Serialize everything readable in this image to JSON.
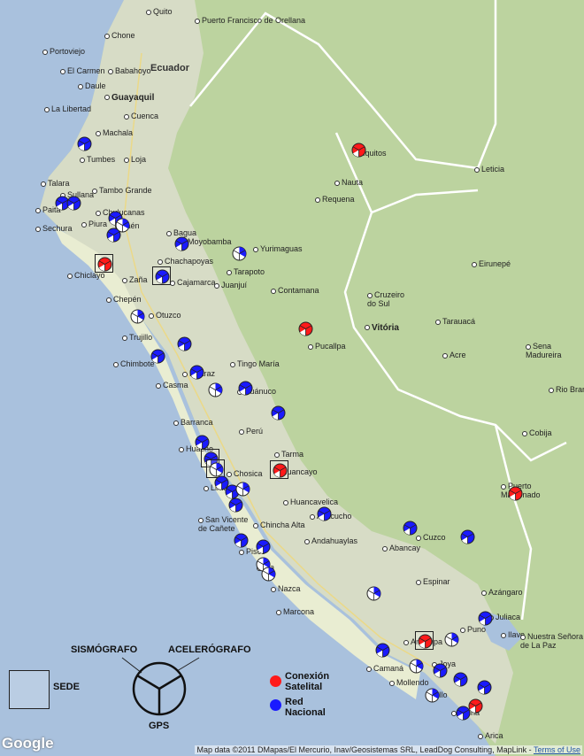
{
  "map": {
    "colors": {
      "ocean": "#a9c1dd",
      "forest": "#bcd39f",
      "coast": "#e6ebcf",
      "mountain": "#d8dcc7",
      "border": "#ffffff",
      "road": "#f0d878"
    },
    "places": [
      {
        "id": "quito",
        "label": "Quito",
        "bold": false
      },
      {
        "id": "san-francisco-orellana",
        "label": "Puerto Francisco de Orellana",
        "bold": false
      },
      {
        "id": "chone",
        "label": "Chone",
        "bold": false
      },
      {
        "id": "portoviejo",
        "label": "Portoviejo",
        "bold": false
      },
      {
        "id": "el-carmen",
        "label": "El Carmen",
        "bold": false
      },
      {
        "id": "babahoyo",
        "label": "Babahoyo",
        "bold": false
      },
      {
        "id": "daule",
        "label": "Daule",
        "bold": false
      },
      {
        "id": "guayaquil",
        "label": "Guayaquil",
        "bold": true
      },
      {
        "id": "la-libertad",
        "label": "La Libertad",
        "bold": false
      },
      {
        "id": "cuenca",
        "label": "Cuenca",
        "bold": false
      },
      {
        "id": "machala",
        "label": "Machala",
        "bold": false
      },
      {
        "id": "loja",
        "label": "Loja",
        "bold": false
      },
      {
        "id": "tumbes",
        "label": "Tumbes",
        "bold": false
      },
      {
        "id": "talara",
        "label": "Talara",
        "bold": false
      },
      {
        "id": "sullana",
        "label": "Sullana",
        "bold": false
      },
      {
        "id": "tambo-grande",
        "label": "Tambo Grande",
        "bold": false
      },
      {
        "id": "paita",
        "label": "Paita",
        "bold": false
      },
      {
        "id": "chulucanas",
        "label": "Chulucanas",
        "bold": false
      },
      {
        "id": "piura",
        "label": "Piura",
        "bold": false
      },
      {
        "id": "sechura",
        "label": "Sechura",
        "bold": false
      },
      {
        "id": "jaen",
        "label": "Jaén",
        "bold": false
      },
      {
        "id": "bagua",
        "label": "Bagua",
        "bold": false
      },
      {
        "id": "moyobamba",
        "label": "Moyobamba",
        "bold": false
      },
      {
        "id": "yurimaguas",
        "label": "Yurimaguas",
        "bold": false
      },
      {
        "id": "chiclayo",
        "label": "Chiclayo",
        "bold": false
      },
      {
        "id": "chachapoyas",
        "label": "Chachapoyas",
        "bold": false
      },
      {
        "id": "tarapoto",
        "label": "Tarapoto",
        "bold": false
      },
      {
        "id": "zana",
        "label": "Zaña",
        "bold": false
      },
      {
        "id": "cajamarca",
        "label": "Cajamarca",
        "bold": false
      },
      {
        "id": "juanjui",
        "label": "Juanjuí",
        "bold": false
      },
      {
        "id": "chepen",
        "label": "Chepén",
        "bold": false
      },
      {
        "id": "contamana",
        "label": "Contamana",
        "bold": false
      },
      {
        "id": "iquitos",
        "label": "Iquitos",
        "bold": false
      },
      {
        "id": "nauta",
        "label": "Nauta",
        "bold": false
      },
      {
        "id": "requena",
        "label": "Requena",
        "bold": false
      },
      {
        "id": "leticia",
        "label": "Leticia",
        "bold": false
      },
      {
        "id": "eirunepe",
        "label": "Eirunepé",
        "bold": false
      },
      {
        "id": "cruzeiro",
        "label": "Cruzeiro\ndo Sul",
        "bold": false
      },
      {
        "id": "vitoria",
        "label": "Vitória",
        "bold": true
      },
      {
        "id": "tarauaca",
        "label": "Tarauacá",
        "bold": false
      },
      {
        "id": "pucallpa",
        "label": "Pucallpa",
        "bold": false
      },
      {
        "id": "trujillo",
        "label": "Trujillo",
        "bold": false
      },
      {
        "id": "otuzco",
        "label": "Otuzco",
        "bold": false
      },
      {
        "id": "chimbote",
        "label": "Chimbote",
        "bold": false
      },
      {
        "id": "casma",
        "label": "Casma",
        "bold": false
      },
      {
        "id": "huaraz",
        "label": "Huaraz",
        "bold": false
      },
      {
        "id": "tingo-maria",
        "label": "Tingo María",
        "bold": false
      },
      {
        "id": "huanuco",
        "label": "Huánuco",
        "bold": false
      },
      {
        "id": "sena-madureira",
        "label": "Sena\nMadureira",
        "bold": false
      },
      {
        "id": "acre",
        "label": "Acre",
        "bold": false
      },
      {
        "id": "rio-branco",
        "label": "Rio Branco",
        "bold": false
      },
      {
        "id": "cobija",
        "label": "Cobija",
        "bold": false
      },
      {
        "id": "peru",
        "label": "Perú",
        "bold": false
      },
      {
        "id": "barranca",
        "label": "Barranca",
        "bold": false
      },
      {
        "id": "huacho",
        "label": "Huacho",
        "bold": false
      },
      {
        "id": "tarma",
        "label": "Tarma",
        "bold": false
      },
      {
        "id": "huancayo",
        "label": "Huancayo",
        "bold": false
      },
      {
        "id": "chosica",
        "label": "Chosica",
        "bold": false
      },
      {
        "id": "lima",
        "label": "Lima",
        "bold": false
      },
      {
        "id": "huancavelica",
        "label": "Huancavelica",
        "bold": false
      },
      {
        "id": "ayacucho",
        "label": "Ayacucho",
        "bold": false
      },
      {
        "id": "san-vicente",
        "label": "San Vicente\nde Cañete",
        "bold": false
      },
      {
        "id": "chincha",
        "label": "Chincha Alta",
        "bold": false
      },
      {
        "id": "andahuaylas",
        "label": "Andahuaylas",
        "bold": false
      },
      {
        "id": "cuzco",
        "label": "Cuzco",
        "bold": false
      },
      {
        "id": "puerto-maldonado",
        "label": "Puerto\nMaldonado",
        "bold": false
      },
      {
        "id": "pisco",
        "label": "Pisco",
        "bold": false
      },
      {
        "id": "ica",
        "label": "Ica",
        "bold": false
      },
      {
        "id": "abancay",
        "label": "Abancay",
        "bold": false
      },
      {
        "id": "nazca",
        "label": "Nazca",
        "bold": false
      },
      {
        "id": "espinar",
        "label": "Espinar",
        "bold": false
      },
      {
        "id": "azangaro",
        "label": "Azángaro",
        "bold": false
      },
      {
        "id": "marcona",
        "label": "Marcona",
        "bold": false
      },
      {
        "id": "juliaca",
        "label": "Juliaca",
        "bold": false
      },
      {
        "id": "puno",
        "label": "Puno",
        "bold": false
      },
      {
        "id": "ilave",
        "label": "Ilave",
        "bold": false
      },
      {
        "id": "nuestra-senora",
        "label": "Nuestra Señora\nde La Paz",
        "bold": false
      },
      {
        "id": "arequipa",
        "label": "Arequipa",
        "bold": false
      },
      {
        "id": "camana",
        "label": "Camaná",
        "bold": false
      },
      {
        "id": "mollendo",
        "label": "Mollendo",
        "bold": false
      },
      {
        "id": "ilo",
        "label": "Ilo",
        "bold": false
      },
      {
        "id": "tacna",
        "label": "Tacna",
        "bold": false
      },
      {
        "id": "arica",
        "label": "Arica",
        "bold": false
      },
      {
        "id": "joya",
        "label": "Joya",
        "bold": false
      }
    ],
    "countries": [
      {
        "id": "ecuador",
        "label": "Ecuador"
      },
      {
        "id": "peru-country",
        "label": "Perú"
      }
    ]
  },
  "legend": {
    "sede_label": "SEDE",
    "sismografo_label": "SISMÓGRAFO",
    "acelerografo_label": "ACELERÓGRAFO",
    "gps_label": "GPS",
    "satelital_label": "Conexión\nSatelital",
    "nacional_label": "Red\nNacional",
    "satelital_color": "#ff1a1a",
    "nacional_color": "#1a1aff"
  },
  "footer": {
    "google_logo": "Google",
    "attribution": "Map data ©2011 DMapas/El Mercurio, Inav/Geosistemas SRL, LeadDog Consulting, MapLink - ",
    "terms_link": "Terms of Use"
  }
}
